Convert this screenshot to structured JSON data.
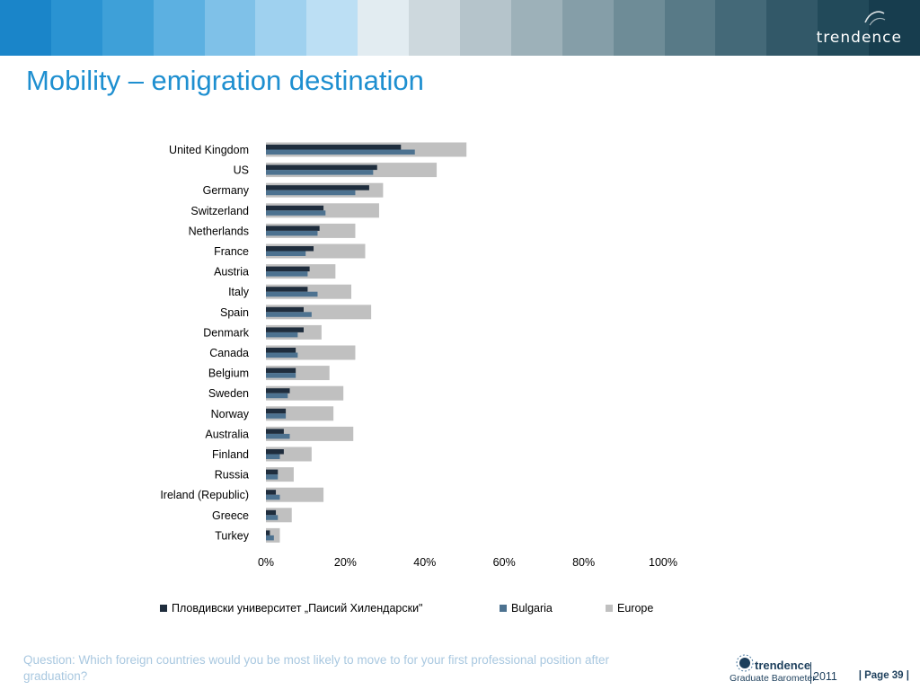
{
  "header": {
    "stripe_colors": [
      "#1a85c9",
      "#2a93d2",
      "#3ea0d8",
      "#5cb0e1",
      "#7fc1e8",
      "#9fd1ef",
      "#bcdff4",
      "#e2ecf1",
      "#cdd8dd",
      "#b5c4cb",
      "#9db1b9",
      "#859ea8",
      "#6e8c97",
      "#587a87",
      "#446978",
      "#325868",
      "#224a5a",
      "#173d4e"
    ],
    "logo_text": "trendence",
    "logo_mark_icon": "trendence-swoosh-icon"
  },
  "page": {
    "title": "Mobility – emigration destination",
    "question": "Question: Which foreign countries would you be most likely to move to for your first professional position after graduation?",
    "page_number": "| Page 39 |"
  },
  "footer_logo": {
    "brand": "trendence",
    "subtitle": "Graduate Barometer",
    "year": "2011",
    "icon": "globe-icon"
  },
  "chart_data": {
    "type": "bar",
    "orientation": "horizontal",
    "categories": [
      "United Kingdom",
      "US",
      "Germany",
      "Switzerland",
      "Netherlands",
      "France",
      "Austria",
      "Italy",
      "Spain",
      "Denmark",
      "Canada",
      "Belgium",
      "Sweden",
      "Norway",
      "Australia",
      "Finland",
      "Russia",
      "Ireland (Republic)",
      "Greece",
      "Turkey"
    ],
    "series": [
      {
        "name": "Пловдивски университет „Паисий Хилендарски\"",
        "color": "#1f2d3d",
        "values": [
          34,
          28,
          26,
          14.5,
          13.5,
          12,
          11,
          10.5,
          9.5,
          9.5,
          7.5,
          7.5,
          6,
          5,
          4.5,
          4.5,
          3,
          2.5,
          2.5,
          1
        ]
      },
      {
        "name": "Bulgaria",
        "color": "#4d7290",
        "values": [
          37.5,
          27,
          22.5,
          15,
          13,
          10,
          10.5,
          13,
          11.5,
          8,
          8,
          7.5,
          5.5,
          5,
          6,
          3.5,
          3,
          3.5,
          3,
          2
        ]
      },
      {
        "name": "Europe",
        "color": "#c0c0c0",
        "values": [
          50.5,
          43,
          29.5,
          28.5,
          22.5,
          25,
          17.5,
          21.5,
          26.5,
          14,
          22.5,
          16,
          19.5,
          17,
          22,
          11.5,
          7,
          14.5,
          6.5,
          3.5
        ]
      }
    ],
    "x_ticks": [
      "0%",
      "20%",
      "40%",
      "60%",
      "80%",
      "100%"
    ],
    "xlim": [
      0,
      100
    ],
    "grid": false,
    "legend_position": "bottom"
  }
}
